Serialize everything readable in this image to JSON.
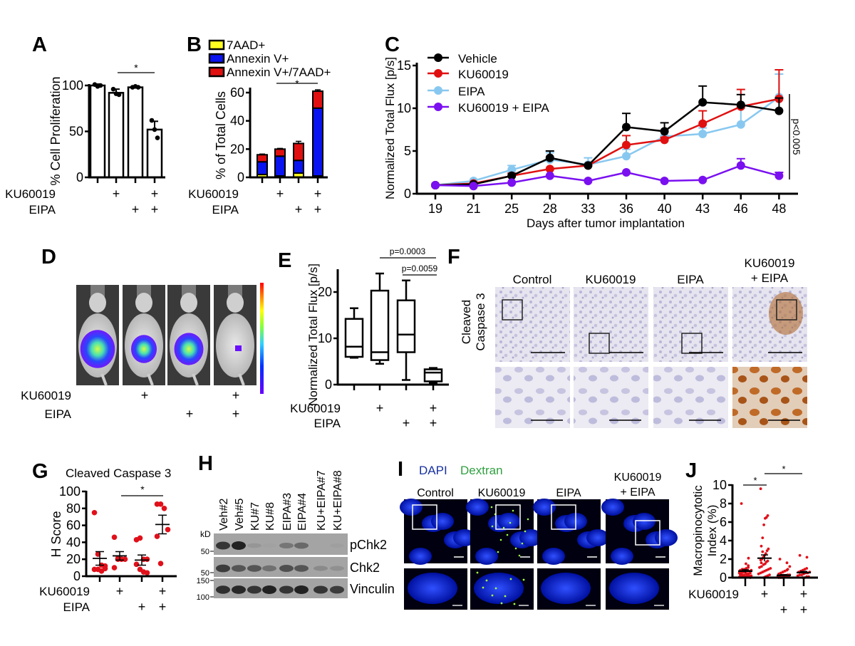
{
  "colors": {
    "vehicle": "#000000",
    "ku60019": "#e01010",
    "eipa": "#88c8f0",
    "combo": "#7a10f0",
    "dot_red": "#e0101a",
    "aad": "#ffff20",
    "annexin": "#0a14f0",
    "double": "#e01010"
  },
  "panels": {
    "A": {
      "label": "A"
    },
    "B": {
      "label": "B"
    },
    "C": {
      "label": "C"
    },
    "D": {
      "label": "D"
    },
    "E": {
      "label": "E"
    },
    "F": {
      "label": "F",
      "row_label_1": "Cleaved",
      "row_label_2": "Caspase 3",
      "columns": [
        "Control",
        "KU60019",
        "EIPA"
      ],
      "col4_line1": "KU60019",
      "col4_line2": "+ EIPA"
    },
    "G": {
      "label": "G"
    },
    "H": {
      "label": "H"
    },
    "I": {
      "label": "I",
      "stain_1": "DAPI",
      "stain_2": "Dextran",
      "columns": [
        "Control",
        "KU60019",
        "EIPA"
      ],
      "col4_line1": "KU60019",
      "col4_line2": "+ EIPA"
    },
    "J": {
      "label": "J"
    }
  },
  "treatment_labels": {
    "ku": "KU60019",
    "eipa": "EIPA",
    "plus": "+"
  },
  "chart_data": [
    {
      "id": "A",
      "type": "bar",
      "ylabel": "% Cell Proliferation",
      "ylim": [
        0,
        100
      ],
      "yticks": [
        "0",
        "50",
        "100"
      ],
      "values": [
        100,
        92,
        98,
        52
      ],
      "sd": [
        1.5,
        4,
        1,
        9
      ],
      "points": [
        [
          101,
          99,
          100
        ],
        [
          96,
          91,
          90
        ],
        [
          98,
          99,
          98
        ],
        [
          62,
          52,
          43
        ]
      ],
      "ku": [
        "",
        "+",
        "",
        "+"
      ],
      "eipa": [
        "",
        "",
        "+",
        "+"
      ],
      "significance": "*"
    },
    {
      "id": "B",
      "type": "bar",
      "stacked": true,
      "ylabel": "% of Total Cells",
      "ylim": [
        0,
        60
      ],
      "yticks": [
        "0",
        "20",
        "40",
        "60"
      ],
      "legend": [
        "7AAD+",
        "Annexin V+",
        "Annexin V+/7AAD+"
      ],
      "series": [
        {
          "name": "7AAD+",
          "values": [
            2,
            1,
            3,
            1
          ]
        },
        {
          "name": "Annexin V+",
          "values": [
            9,
            14,
            9,
            48
          ]
        },
        {
          "name": "Annexin V+/7AAD+",
          "values": [
            5,
            5,
            12,
            12
          ]
        }
      ],
      "error": [
        0.5,
        0.5,
        1.5,
        1
      ],
      "ku": [
        "",
        "+",
        "",
        "+"
      ],
      "eipa": [
        "",
        "",
        "+",
        "+"
      ],
      "significance": "*"
    },
    {
      "id": "C",
      "type": "line",
      "xlabel": "Days after tumor implantation",
      "ylabel": "Normalized Total Flux [p/s]",
      "x": [
        "19",
        "21",
        "25",
        "28",
        "33",
        "36",
        "40",
        "43",
        "46",
        "48"
      ],
      "ylim": [
        0,
        15
      ],
      "yticks": [
        "0",
        "5",
        "10",
        "15"
      ],
      "series": [
        {
          "name": "Vehicle",
          "values": [
            1,
            1.1,
            2.1,
            4.2,
            3.3,
            7.8,
            7.3,
            10.7,
            10.4,
            9.7
          ],
          "err": [
            0,
            0,
            0,
            0.8,
            0,
            1.6,
            1.0,
            1.9,
            1.2,
            1.5
          ]
        },
        {
          "name": "KU60019",
          "values": [
            1,
            1.2,
            2.1,
            2.9,
            3.3,
            5.7,
            6.3,
            8.2,
            10.2,
            11.1
          ],
          "err": [
            0,
            0,
            0.3,
            0,
            0,
            1.1,
            0.3,
            1.5,
            2.0,
            3.4
          ]
        },
        {
          "name": "EIPA",
          "values": [
            1,
            1.5,
            2.8,
            4.0,
            3.4,
            4.4,
            6.7,
            7.0,
            8.1,
            11.3
          ],
          "err": [
            0,
            0,
            0.5,
            0.8,
            0.8,
            0.8,
            0,
            0.7,
            1.9,
            2.7
          ]
        },
        {
          "name": "KU60019 + EIPA",
          "values": [
            1,
            0.9,
            1.3,
            2.1,
            1.5,
            2.5,
            1.5,
            1.6,
            3.3,
            2.1
          ],
          "err": [
            0,
            0,
            0,
            0,
            0,
            0,
            0,
            0,
            0.8,
            0.4
          ]
        }
      ],
      "annotation": "p<0.005",
      "legend_position": "top-left"
    },
    {
      "id": "D",
      "type": "image",
      "luminescence_level": [
        0.85,
        0.6,
        0.7,
        0.1
      ],
      "ku": [
        "",
        "+",
        "",
        "+"
      ],
      "eipa": [
        "",
        "",
        "+",
        "+"
      ]
    },
    {
      "id": "E",
      "type": "box",
      "ylabel": "Normalized Total Flux [p/s]",
      "ylim": [
        0,
        25
      ],
      "yticks": [
        "0",
        "10",
        "20"
      ],
      "boxes": [
        {
          "min": 5.8,
          "q1": 6,
          "median": 8.2,
          "q3": 14.2,
          "max": 16.5
        },
        {
          "min": 4.5,
          "q1": 5.3,
          "median": 7,
          "q3": 20.3,
          "max": 24
        },
        {
          "min": 1,
          "q1": 7,
          "median": 10.8,
          "q3": 18.2,
          "max": 22.5
        },
        {
          "min": 0.4,
          "q1": 0.7,
          "median": 2.6,
          "q3": 3.3,
          "max": 3.6
        }
      ],
      "pvalues": [
        "p=0.0003",
        "p=0.0059"
      ],
      "ku": [
        "",
        "+",
        "",
        "+"
      ],
      "eipa": [
        "",
        "",
        "+",
        "+"
      ]
    },
    {
      "id": "G",
      "type": "scatter",
      "title": "Cleaved Caspase 3",
      "ylabel": "H Score",
      "ylim": [
        0,
        100
      ],
      "yticks": [
        "0",
        "20",
        "40",
        "60",
        "80",
        "100"
      ],
      "points": [
        [
          75,
          26,
          13,
          12,
          8,
          8,
          6,
          9
        ],
        [
          46,
          20,
          20,
          20,
          10,
          21
        ],
        [
          43,
          45,
          20,
          20,
          14,
          8,
          5,
          4
        ],
        [
          85,
          85,
          80,
          55,
          47,
          15
        ]
      ],
      "mean": [
        21,
        24,
        19,
        61
      ],
      "sem": [
        8,
        5,
        6,
        11
      ],
      "significance": "*",
      "ku": [
        "",
        "+",
        "",
        "+"
      ],
      "eipa": [
        "",
        "",
        "+",
        "+"
      ]
    },
    {
      "id": "H",
      "type": "blot",
      "kd_label": "kD",
      "markers": [
        "50",
        "50",
        "150",
        "100"
      ],
      "lanes": [
        "Veh#2",
        "Veh#5",
        "KU#7",
        "KU#8",
        "EIPA#3",
        "EIPA#4",
        "KU+EIPA#7",
        "KU+EIPA#8"
      ],
      "bands": [
        {
          "name": "pChk2",
          "intensity": [
            0.85,
            1.0,
            0.1,
            0.02,
            0.35,
            0.45,
            0,
            0.03
          ]
        },
        {
          "name": "Chk2",
          "intensity": [
            0.8,
            0.6,
            0.6,
            0.4,
            0.65,
            0.6,
            0.2,
            0.15
          ]
        },
        {
          "name": "Vinculin",
          "intensity": [
            0.9,
            0.95,
            0.85,
            1.0,
            0.85,
            1.0,
            0.85,
            0.8
          ]
        }
      ]
    },
    {
      "id": "J",
      "type": "scatter",
      "ylabel_1": "Macropinocytotic",
      "ylabel_2": "Index (%)",
      "ylim": [
        0,
        10
      ],
      "yticks": [
        "0",
        "2",
        "4",
        "6",
        "8",
        "10"
      ],
      "points": [
        [
          8.0,
          2.1,
          1.1,
          1.0,
          0.9,
          0.9,
          0.8,
          0.8,
          0.7,
          0.7,
          0.6,
          0.6,
          0.5,
          0.5,
          0.5,
          0.4,
          0.4,
          0.3,
          0.3,
          0.3,
          0.2,
          0.2,
          0.2,
          0.1,
          0.1,
          0.1,
          0.05,
          0.0,
          1.3,
          1.5
        ],
        [
          9.6,
          6.7,
          6.5,
          6.4,
          5.7,
          4.3,
          3.4,
          3.1,
          2.9,
          2.6,
          2.4,
          2.2,
          2.0,
          1.9,
          1.8,
          1.7,
          1.5,
          1.4,
          1.2,
          1.1,
          1.0,
          0.9,
          0.8,
          0.7,
          0.6,
          0.5,
          0.4,
          0.3,
          0.2,
          0.1,
          0.0,
          2.8,
          1.6
        ],
        [
          2.0,
          1.6,
          0.8,
          0.7,
          0.6,
          0.5,
          0.4,
          0.3,
          0.3,
          0.2,
          0.2,
          0.2,
          0.1,
          0.1,
          0.1,
          0.05,
          0.05,
          0.0,
          0.0,
          0.0,
          1.2,
          0.9
        ],
        [
          2.4,
          2.2,
          1.0,
          0.9,
          0.8,
          0.7,
          0.6,
          0.6,
          0.5,
          0.5,
          0.4,
          0.3,
          0.3,
          0.2,
          0.1,
          0.1,
          0.0,
          0.0
        ]
      ],
      "mean": [
        0.7,
        2.1,
        0.25,
        0.55
      ],
      "sem": [
        0.15,
        0.35,
        0.08,
        0.12
      ],
      "significance": [
        "*",
        "*"
      ],
      "ku": [
        "",
        "+",
        "",
        "+"
      ],
      "eipa": [
        "",
        "",
        "+",
        "+"
      ]
    }
  ]
}
